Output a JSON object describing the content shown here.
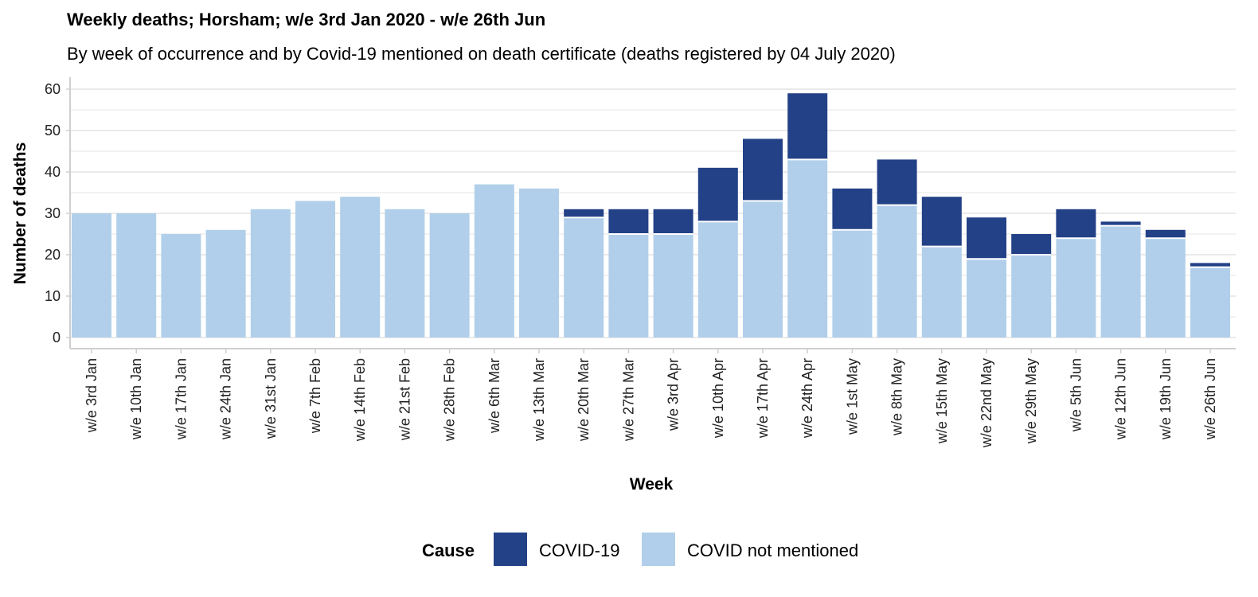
{
  "chart_data": {
    "type": "bar",
    "stacked": true,
    "title": "Weekly deaths; Horsham; w/e 3rd Jan 2020 - w/e 26th Jun",
    "subtitle": "By week of occurrence and by Covid-19 mentioned on death certificate (deaths registered by 04 July 2020)",
    "xlabel": "Week",
    "ylabel": "Number of deaths",
    "ylim": [
      0,
      60
    ],
    "yticks": [
      0,
      10,
      20,
      30,
      40,
      50,
      60
    ],
    "grid": true,
    "legend": {
      "title": "Cause",
      "position": "bottom"
    },
    "categories": [
      "w/e 3rd Jan",
      "w/e 10th Jan",
      "w/e 17th Jan",
      "w/e 24th Jan",
      "w/e 31st Jan",
      "w/e 7th Feb",
      "w/e 14th Feb",
      "w/e 21st Feb",
      "w/e 28th Feb",
      "w/e 6th Mar",
      "w/e 13th Mar",
      "w/e 20th Mar",
      "w/e 27th Mar",
      "w/e 3rd Apr",
      "w/e 10th Apr",
      "w/e 17th Apr",
      "w/e 24th Apr",
      "w/e 1st May",
      "w/e 8th May",
      "w/e 15th May",
      "w/e 22nd May",
      "w/e 29th May",
      "w/e 5th Jun",
      "w/e 12th Jun",
      "w/e 19th Jun",
      "w/e 26th Jun"
    ],
    "series": [
      {
        "name": "COVID not mentioned",
        "color": "#b1cfea",
        "values": [
          30,
          30,
          25,
          26,
          31,
          33,
          34,
          31,
          30,
          37,
          36,
          29,
          25,
          25,
          28,
          33,
          43,
          26,
          32,
          22,
          19,
          20,
          24,
          27,
          24,
          17
        ]
      },
      {
        "name": "COVID-19",
        "color": "#234187",
        "values": [
          0,
          0,
          0,
          0,
          0,
          0,
          0,
          0,
          0,
          0,
          0,
          2,
          6,
          6,
          13,
          15,
          16,
          10,
          11,
          12,
          10,
          5,
          7,
          1,
          2,
          1
        ]
      }
    ],
    "legend_order": [
      "COVID-19",
      "COVID not mentioned"
    ]
  }
}
